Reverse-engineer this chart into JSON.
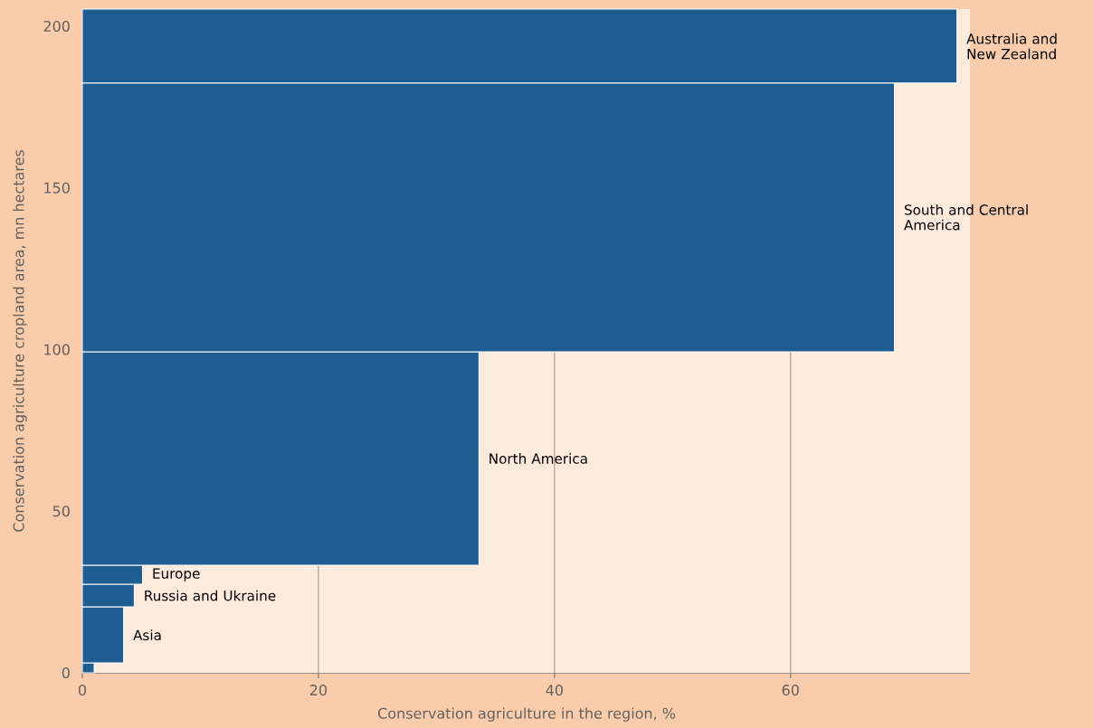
{
  "chart_data": {
    "type": "histogram",
    "orientation": "horizontal",
    "xlabel": "Conservation agriculture in the region, %",
    "ylabel": "Conservation agriculture cropland area, mn hectares",
    "bins": [
      0,
      3.1,
      20.4,
      27.4,
      33.3,
      99.3,
      182.4,
      205.3
    ],
    "values": [
      1.0,
      3.5,
      4.4,
      5.1,
      33.6,
      68.8,
      74.1
    ],
    "color": "#1f5c92",
    "xlim": [
      0,
      75.2
    ],
    "ylim": [
      0,
      205.3
    ],
    "xticks": [
      0,
      20,
      40,
      60
    ],
    "yticks": [
      0,
      50,
      100,
      150,
      200
    ],
    "grid": "x",
    "bands": [
      {
        "axis": "x",
        "from": 0,
        "to": 75.2,
        "color": "#fdebdd"
      }
    ],
    "annotations": [
      {
        "text": "Asia",
        "x": 3.5,
        "y": 11.7
      },
      {
        "text": "Russia and Ukraine",
        "x": 4.4,
        "y": 23.9
      },
      {
        "text": "Europe",
        "x": 5.1,
        "y": 30.3
      },
      {
        "text": "North America",
        "x": 33.6,
        "y": 66.3
      },
      {
        "text": "South and Central America",
        "x": 68.8,
        "y": 140.9
      },
      {
        "text": "Australia and New Zealand",
        "x": 74.1,
        "y": 193.8
      }
    ]
  }
}
